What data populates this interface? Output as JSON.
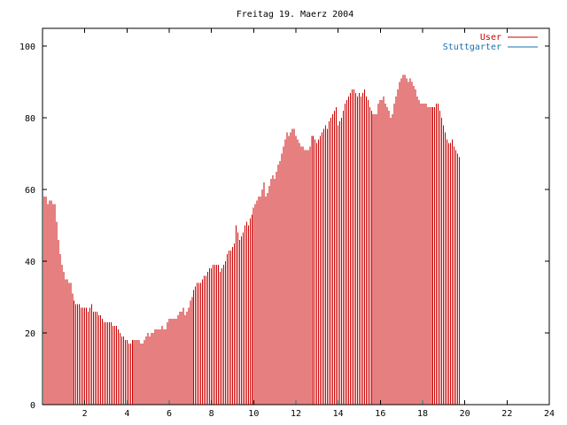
{
  "chart_data": {
    "type": "bar",
    "title": "Freitag 19. Maerz 2004",
    "xlabel": "",
    "ylabel": "",
    "xlim": [
      0,
      24
    ],
    "ylim": [
      0,
      105
    ],
    "grid": false,
    "legend_position": "top-right",
    "x_ticks": [
      2,
      4,
      6,
      8,
      10,
      12,
      14,
      16,
      18,
      20,
      22,
      24
    ],
    "y_ticks": [
      0,
      20,
      40,
      60,
      80,
      100
    ],
    "series": [
      {
        "name": "User",
        "color": "#cc0000",
        "x_start": 0,
        "x_step": 0.0833,
        "values": [
          58,
          58,
          58,
          56,
          57,
          57,
          56,
          56,
          51,
          46,
          42,
          39,
          37,
          35,
          35,
          34,
          34,
          31,
          29,
          28,
          28,
          28,
          27,
          27,
          27,
          27,
          26,
          27,
          28,
          26,
          26,
          26,
          25,
          25,
          24,
          23,
          23,
          23,
          23,
          23,
          22,
          22,
          22,
          21,
          20,
          19,
          19,
          18,
          18,
          17,
          17,
          18,
          18,
          18,
          18,
          18,
          17,
          17,
          18,
          19,
          20,
          19,
          20,
          20,
          21,
          21,
          21,
          21,
          22,
          21,
          21,
          23,
          24,
          24,
          24,
          24,
          24,
          25,
          26,
          26,
          27,
          25,
          26,
          27,
          29,
          30,
          32,
          33,
          34,
          34,
          34,
          35,
          36,
          36,
          37,
          38,
          38,
          39,
          39,
          39,
          39,
          37,
          38,
          39,
          40,
          42,
          43,
          43,
          44,
          45,
          50,
          48,
          46,
          47,
          48,
          50,
          51,
          50,
          52,
          53,
          55,
          56,
          57,
          58,
          58,
          60,
          62,
          58,
          59,
          61,
          63,
          64,
          63,
          65,
          67,
          68,
          70,
          72,
          74,
          76,
          75,
          76,
          77,
          77,
          75,
          74,
          73,
          72,
          72,
          71,
          71,
          71,
          72,
          75,
          75,
          74,
          73,
          74,
          75,
          76,
          77,
          78,
          77,
          79,
          80,
          81,
          82,
          83,
          78,
          79,
          80,
          82,
          84,
          85,
          86,
          87,
          88,
          88,
          87,
          86,
          87,
          86,
          87,
          88,
          86,
          85,
          83,
          82,
          81,
          81,
          81,
          84,
          85,
          85,
          86,
          84,
          83,
          82,
          80,
          81,
          84,
          86,
          88,
          90,
          91,
          92,
          92,
          91,
          90,
          91,
          90,
          89,
          88,
          86,
          85,
          84,
          84,
          84,
          84,
          83,
          83,
          83,
          83,
          83,
          84,
          84,
          82,
          80,
          78,
          76,
          74,
          73,
          73,
          74,
          72,
          71,
          70,
          69
        ]
      },
      {
        "name": "Stuttgarter",
        "color": "#1a6fb0",
        "x_start": 0,
        "x_step": 0.0833,
        "values": [
          0,
          0,
          0,
          0,
          0,
          0,
          0,
          0,
          0,
          0,
          0,
          0,
          0,
          0,
          0,
          0,
          0,
          0,
          0,
          0,
          0,
          0,
          0,
          0,
          0,
          0,
          0,
          0,
          0,
          0,
          0,
          0,
          0,
          0,
          0,
          0,
          0,
          0,
          0,
          0,
          0,
          0,
          0,
          0,
          0,
          0,
          0,
          0,
          0,
          0,
          0,
          0,
          0,
          0,
          0,
          0,
          0,
          0,
          0,
          0,
          0,
          0,
          0,
          0,
          0,
          0,
          0,
          0,
          0,
          0,
          0,
          0,
          0,
          0,
          0,
          0,
          0,
          0,
          0,
          0,
          0,
          0,
          0,
          0,
          0,
          0,
          0,
          0,
          0,
          0,
          0,
          0,
          0,
          0,
          0,
          0,
          0,
          0,
          0,
          0,
          0,
          0,
          0,
          0,
          0,
          0,
          0,
          0,
          0,
          0,
          0,
          0,
          0,
          0,
          0,
          0,
          0,
          0,
          0,
          0,
          0,
          0,
          0,
          0,
          0,
          0,
          0,
          0,
          0,
          0,
          0,
          0,
          0,
          0,
          0,
          0,
          0,
          0,
          0,
          0,
          0,
          0,
          0,
          0,
          0,
          0,
          0,
          0,
          0,
          0,
          0,
          0,
          0,
          0,
          0,
          0,
          0,
          0,
          0,
          0,
          0,
          0,
          0,
          0,
          0,
          0,
          0,
          0,
          0,
          0,
          0,
          0,
          0,
          0,
          0,
          0,
          0,
          0,
          0,
          0,
          0,
          0,
          0,
          0,
          0,
          0,
          0,
          0,
          0,
          0,
          0,
          0,
          0,
          0,
          0,
          0,
          0,
          0,
          0,
          0,
          0,
          0,
          0,
          0,
          0,
          0,
          0,
          0,
          0,
          0,
          0,
          0,
          0,
          0,
          0,
          0,
          0,
          0,
          0,
          0,
          0,
          0,
          0,
          0,
          0,
          0,
          0,
          0,
          0,
          0,
          0,
          0,
          0,
          0,
          0,
          0,
          0,
          0,
          0,
          0,
          0,
          0,
          0,
          0
        ]
      }
    ]
  }
}
